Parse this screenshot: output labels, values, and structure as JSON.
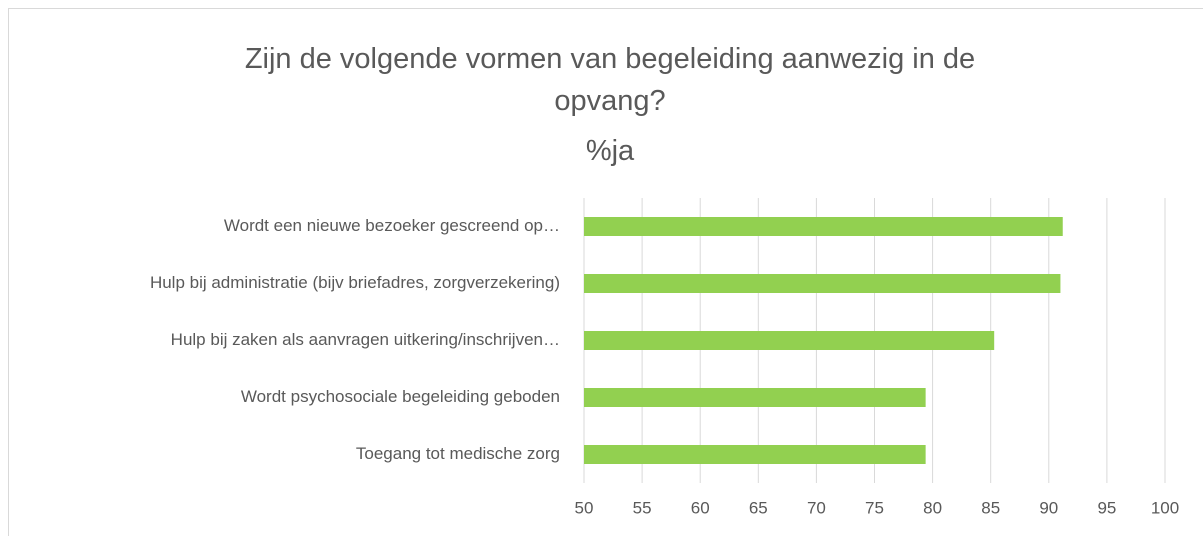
{
  "chart_data": {
    "type": "bar",
    "orientation": "horizontal",
    "title": "Zijn de volgende vormen van begeleiding aanwezig in de opvang?",
    "subtitle": "%ja",
    "categories": [
      "Wordt een nieuwe bezoeker gescreend op…",
      "Hulp bij administratie (bijv briefadres, zorgverzekering)",
      "Hulp bij zaken als aanvragen uitkering/inschrijven…",
      "Wordt psychosociale begeleiding geboden",
      "Toegang tot medische zorg"
    ],
    "values": [
      91.2,
      91,
      85.3,
      79.4,
      79.4
    ],
    "color": "#92d050",
    "xlim": [
      50,
      100
    ],
    "xticks": [
      50,
      55,
      60,
      65,
      70,
      75,
      80,
      85,
      90,
      95,
      100
    ],
    "grid": true
  }
}
